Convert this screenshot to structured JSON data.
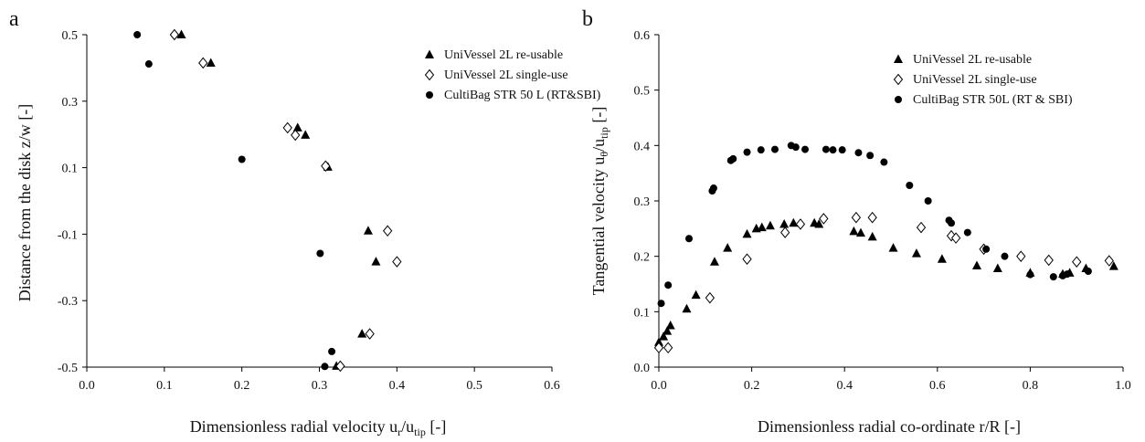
{
  "chart_data": [
    {
      "panel_label": "a",
      "type": "scatter",
      "xlabel_main": "Dimensionless radial velocity u",
      "xlabel_sub1": "r",
      "xlabel_mid": "/u",
      "xlabel_sub2": "tip",
      "xlabel_end": " [-]",
      "ylabel": "Distance from the disk z/w [-]",
      "xlim": [
        0.0,
        0.6
      ],
      "ylim": [
        -0.5,
        0.5
      ],
      "xticks": [
        "0.0",
        "0.1",
        "0.2",
        "0.3",
        "0.4",
        "0.5",
        "0.6"
      ],
      "yticks": [
        "-0.5",
        "-0.3",
        "-0.1",
        "0.1",
        "0.3",
        "0.5"
      ],
      "grid": false,
      "legend_position": "top-right",
      "series": [
        {
          "name": "UniVessel 2L re-usable",
          "marker": "triangle",
          "points": [
            [
              0.122,
              0.5
            ],
            [
              0.16,
              0.415
            ],
            [
              0.272,
              0.22
            ],
            [
              0.282,
              0.198
            ],
            [
              0.311,
              0.102
            ],
            [
              0.363,
              -0.09
            ],
            [
              0.373,
              -0.183
            ],
            [
              0.355,
              -0.4
            ],
            [
              0.322,
              -0.497
            ]
          ]
        },
        {
          "name": "UniVessel 2L single-use",
          "marker": "diamond",
          "points": [
            [
              0.113,
              0.5
            ],
            [
              0.15,
              0.415
            ],
            [
              0.259,
              0.22
            ],
            [
              0.269,
              0.198
            ],
            [
              0.308,
              0.105
            ],
            [
              0.388,
              -0.09
            ],
            [
              0.4,
              -0.183
            ],
            [
              0.365,
              -0.4
            ],
            [
              0.327,
              -0.497
            ]
          ]
        },
        {
          "name": "CultiBag STR 50 L (RT&SBI)",
          "marker": "circle",
          "points": [
            [
              0.065,
              0.5
            ],
            [
              0.08,
              0.412
            ],
            [
              0.2,
              0.125
            ],
            [
              0.301,
              -0.158
            ],
            [
              0.316,
              -0.453
            ],
            [
              0.307,
              -0.498
            ]
          ]
        }
      ]
    },
    {
      "panel_label": "b",
      "type": "scatter",
      "xlabel": "Dimensionless radial co-ordinate r/R [-]",
      "ylabel_main": "Tangential velocity u",
      "ylabel_sub1": "θ",
      "ylabel_mid": "/u",
      "ylabel_sub2": "tip",
      "ylabel_end": " [-]",
      "xlim": [
        0.0,
        1.0
      ],
      "ylim": [
        0.0,
        0.6
      ],
      "xticks": [
        "0.0",
        "0.2",
        "0.4",
        "0.6",
        "0.8",
        "1.0"
      ],
      "yticks": [
        "0.0",
        "0.1",
        "0.2",
        "0.3",
        "0.4",
        "0.5",
        "0.6"
      ],
      "grid": false,
      "legend_position": "top-right",
      "series": [
        {
          "name": "UniVessel 2L re-usable",
          "marker": "triangle",
          "points": [
            [
              0.0,
              0.045
            ],
            [
              0.01,
              0.055
            ],
            [
              0.018,
              0.065
            ],
            [
              0.025,
              0.075
            ],
            [
              0.06,
              0.105
            ],
            [
              0.08,
              0.13
            ],
            [
              0.12,
              0.19
            ],
            [
              0.148,
              0.215
            ],
            [
              0.19,
              0.24
            ],
            [
              0.21,
              0.25
            ],
            [
              0.222,
              0.252
            ],
            [
              0.24,
              0.255
            ],
            [
              0.27,
              0.258
            ],
            [
              0.29,
              0.26
            ],
            [
              0.335,
              0.26
            ],
            [
              0.345,
              0.258
            ],
            [
              0.42,
              0.245
            ],
            [
              0.435,
              0.242
            ],
            [
              0.46,
              0.235
            ],
            [
              0.505,
              0.215
            ],
            [
              0.555,
              0.205
            ],
            [
              0.61,
              0.195
            ],
            [
              0.685,
              0.183
            ],
            [
              0.73,
              0.178
            ],
            [
              0.8,
              0.17
            ],
            [
              0.87,
              0.168
            ],
            [
              0.885,
              0.17
            ],
            [
              0.92,
              0.178
            ],
            [
              0.98,
              0.182
            ]
          ]
        },
        {
          "name": "UniVessel 2L single-use",
          "marker": "diamond",
          "points": [
            [
              0.0,
              0.035
            ],
            [
              0.02,
              0.035
            ],
            [
              0.11,
              0.125
            ],
            [
              0.19,
              0.195
            ],
            [
              0.272,
              0.243
            ],
            [
              0.305,
              0.258
            ],
            [
              0.355,
              0.268
            ],
            [
              0.425,
              0.27
            ],
            [
              0.46,
              0.27
            ],
            [
              0.565,
              0.252
            ],
            [
              0.63,
              0.237
            ],
            [
              0.64,
              0.233
            ],
            [
              0.7,
              0.213
            ],
            [
              0.78,
              0.2
            ],
            [
              0.84,
              0.193
            ],
            [
              0.9,
              0.19
            ],
            [
              0.97,
              0.192
            ]
          ]
        },
        {
          "name": "CultiBag STR 50L (RT & SBI)",
          "marker": "circle",
          "points": [
            [
              0.005,
              0.115
            ],
            [
              0.02,
              0.148
            ],
            [
              0.065,
              0.232
            ],
            [
              0.115,
              0.318
            ],
            [
              0.118,
              0.323
            ],
            [
              0.155,
              0.373
            ],
            [
              0.16,
              0.376
            ],
            [
              0.19,
              0.388
            ],
            [
              0.22,
              0.392
            ],
            [
              0.25,
              0.393
            ],
            [
              0.285,
              0.4
            ],
            [
              0.295,
              0.397
            ],
            [
              0.315,
              0.393
            ],
            [
              0.36,
              0.393
            ],
            [
              0.375,
              0.392
            ],
            [
              0.395,
              0.392
            ],
            [
              0.43,
              0.387
            ],
            [
              0.455,
              0.382
            ],
            [
              0.485,
              0.37
            ],
            [
              0.54,
              0.328
            ],
            [
              0.58,
              0.3
            ],
            [
              0.625,
              0.265
            ],
            [
              0.63,
              0.26
            ],
            [
              0.665,
              0.243
            ],
            [
              0.705,
              0.213
            ],
            [
              0.745,
              0.2
            ],
            [
              0.8,
              0.167
            ],
            [
              0.85,
              0.163
            ],
            [
              0.87,
              0.165
            ],
            [
              0.88,
              0.168
            ],
            [
              0.925,
              0.173
            ]
          ]
        }
      ]
    }
  ]
}
